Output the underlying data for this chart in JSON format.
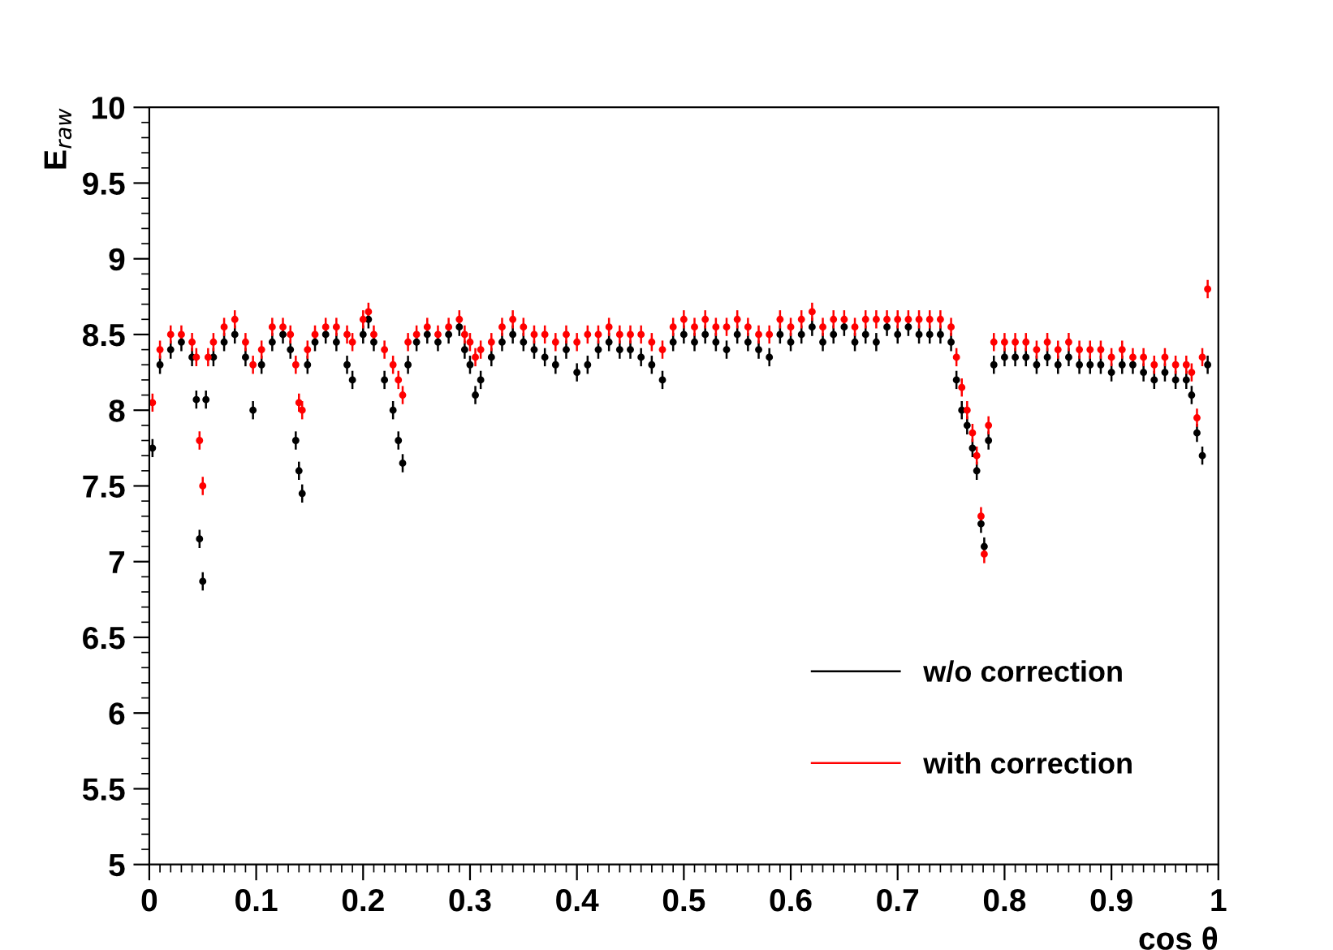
{
  "chart_data": {
    "type": "scatter",
    "xlabel": "cos θ",
    "ylabel": "E$_{raw}$",
    "xlim": [
      0,
      1
    ],
    "ylim": [
      5,
      10
    ],
    "xticks": [
      0,
      0.1,
      0.2,
      0.3,
      0.4,
      0.5,
      0.6,
      0.7,
      0.8,
      0.9,
      1
    ],
    "yticks": [
      5,
      5.5,
      6,
      6.5,
      7,
      7.5,
      8,
      8.5,
      9,
      9.5,
      10
    ],
    "grid": false,
    "legend": "bottom right",
    "marker": "circle",
    "series": [
      {
        "name": "w/o correction",
        "color": "#000000",
        "x": [
          0.003,
          0.01,
          0.02,
          0.03,
          0.04,
          0.044,
          0.047,
          0.05,
          0.053,
          0.06,
          0.07,
          0.08,
          0.09,
          0.097,
          0.105,
          0.115,
          0.125,
          0.132,
          0.137,
          0.14,
          0.143,
          0.148,
          0.155,
          0.165,
          0.175,
          0.185,
          0.19,
          0.2,
          0.205,
          0.21,
          0.22,
          0.228,
          0.233,
          0.237,
          0.242,
          0.25,
          0.26,
          0.27,
          0.28,
          0.29,
          0.295,
          0.3,
          0.305,
          0.31,
          0.32,
          0.33,
          0.34,
          0.35,
          0.36,
          0.37,
          0.38,
          0.39,
          0.4,
          0.41,
          0.42,
          0.43,
          0.44,
          0.45,
          0.46,
          0.47,
          0.48,
          0.49,
          0.5,
          0.51,
          0.52,
          0.53,
          0.54,
          0.55,
          0.56,
          0.57,
          0.58,
          0.59,
          0.6,
          0.61,
          0.62,
          0.63,
          0.64,
          0.65,
          0.66,
          0.67,
          0.68,
          0.69,
          0.7,
          0.71,
          0.72,
          0.73,
          0.74,
          0.75,
          0.755,
          0.76,
          0.765,
          0.77,
          0.774,
          0.778,
          0.781,
          0.785,
          0.79,
          0.8,
          0.81,
          0.82,
          0.83,
          0.84,
          0.85,
          0.86,
          0.87,
          0.88,
          0.89,
          0.9,
          0.91,
          0.92,
          0.93,
          0.94,
          0.95,
          0.96,
          0.97,
          0.975,
          0.98,
          0.985,
          0.99
        ],
        "values": [
          7.75,
          8.3,
          8.4,
          8.45,
          8.35,
          8.07,
          7.15,
          6.87,
          8.07,
          8.35,
          8.45,
          8.5,
          8.35,
          8.0,
          8.3,
          8.45,
          8.5,
          8.4,
          7.8,
          7.6,
          7.45,
          8.3,
          8.45,
          8.5,
          8.45,
          8.3,
          8.2,
          8.5,
          8.6,
          8.45,
          8.2,
          8.0,
          7.8,
          7.65,
          8.3,
          8.45,
          8.5,
          8.45,
          8.5,
          8.55,
          8.4,
          8.3,
          8.1,
          8.2,
          8.35,
          8.45,
          8.5,
          8.45,
          8.4,
          8.35,
          8.3,
          8.4,
          8.25,
          8.3,
          8.4,
          8.45,
          8.4,
          8.4,
          8.35,
          8.3,
          8.2,
          8.45,
          8.5,
          8.45,
          8.5,
          8.45,
          8.4,
          8.5,
          8.45,
          8.4,
          8.35,
          8.5,
          8.45,
          8.5,
          8.55,
          8.45,
          8.5,
          8.55,
          8.45,
          8.5,
          8.45,
          8.55,
          8.5,
          8.55,
          8.5,
          8.5,
          8.5,
          8.45,
          8.2,
          8.0,
          7.9,
          7.75,
          7.6,
          7.25,
          7.1,
          7.8,
          8.3,
          8.35,
          8.35,
          8.35,
          8.3,
          8.35,
          8.3,
          8.35,
          8.3,
          8.3,
          8.3,
          8.25,
          8.3,
          8.3,
          8.25,
          8.2,
          8.25,
          8.2,
          8.2,
          8.1,
          7.85,
          7.7,
          8.3
        ],
        "errors": [
          0.06,
          0.06,
          0.06,
          0.06,
          0.06,
          0.06,
          0.06,
          0.06,
          0.06,
          0.06,
          0.06,
          0.06,
          0.06,
          0.06,
          0.06,
          0.06,
          0.06,
          0.06,
          0.06,
          0.06,
          0.06,
          0.06,
          0.06,
          0.06,
          0.06,
          0.06,
          0.06,
          0.06,
          0.06,
          0.06,
          0.06,
          0.06,
          0.06,
          0.06,
          0.06,
          0.06,
          0.06,
          0.06,
          0.06,
          0.06,
          0.06,
          0.06,
          0.06,
          0.06,
          0.06,
          0.06,
          0.06,
          0.06,
          0.06,
          0.06,
          0.06,
          0.06,
          0.06,
          0.06,
          0.06,
          0.06,
          0.06,
          0.06,
          0.06,
          0.06,
          0.06,
          0.06,
          0.06,
          0.06,
          0.06,
          0.06,
          0.06,
          0.06,
          0.06,
          0.06,
          0.06,
          0.06,
          0.06,
          0.06,
          0.06,
          0.06,
          0.06,
          0.06,
          0.06,
          0.06,
          0.06,
          0.06,
          0.06,
          0.06,
          0.06,
          0.06,
          0.06,
          0.06,
          0.06,
          0.06,
          0.06,
          0.06,
          0.06,
          0.06,
          0.06,
          0.06,
          0.06,
          0.06,
          0.06,
          0.06,
          0.06,
          0.06,
          0.06,
          0.06,
          0.06,
          0.06,
          0.06,
          0.06,
          0.06,
          0.06,
          0.06,
          0.06,
          0.06,
          0.06,
          0.06,
          0.06,
          0.06,
          0.06,
          0.06
        ]
      },
      {
        "name": "with correction",
        "color": "#ff0000",
        "x": [
          0.003,
          0.01,
          0.02,
          0.03,
          0.04,
          0.044,
          0.047,
          0.05,
          0.055,
          0.06,
          0.07,
          0.08,
          0.09,
          0.097,
          0.105,
          0.115,
          0.125,
          0.132,
          0.137,
          0.14,
          0.143,
          0.148,
          0.155,
          0.165,
          0.175,
          0.185,
          0.19,
          0.2,
          0.205,
          0.21,
          0.22,
          0.228,
          0.233,
          0.237,
          0.242,
          0.25,
          0.26,
          0.27,
          0.28,
          0.29,
          0.295,
          0.3,
          0.305,
          0.31,
          0.32,
          0.33,
          0.34,
          0.35,
          0.36,
          0.37,
          0.38,
          0.39,
          0.4,
          0.41,
          0.42,
          0.43,
          0.44,
          0.45,
          0.46,
          0.47,
          0.48,
          0.49,
          0.5,
          0.51,
          0.52,
          0.53,
          0.54,
          0.55,
          0.56,
          0.57,
          0.58,
          0.59,
          0.6,
          0.61,
          0.62,
          0.63,
          0.64,
          0.65,
          0.66,
          0.67,
          0.68,
          0.69,
          0.7,
          0.71,
          0.72,
          0.73,
          0.74,
          0.75,
          0.755,
          0.76,
          0.765,
          0.77,
          0.774,
          0.778,
          0.781,
          0.785,
          0.79,
          0.8,
          0.81,
          0.82,
          0.83,
          0.84,
          0.85,
          0.86,
          0.87,
          0.88,
          0.89,
          0.9,
          0.91,
          0.92,
          0.93,
          0.94,
          0.95,
          0.96,
          0.97,
          0.975,
          0.98,
          0.985,
          0.99
        ],
        "values": [
          8.05,
          8.4,
          8.5,
          8.5,
          8.45,
          8.35,
          7.8,
          7.5,
          8.35,
          8.45,
          8.55,
          8.6,
          8.45,
          8.3,
          8.4,
          8.55,
          8.55,
          8.5,
          8.3,
          8.05,
          8.0,
          8.4,
          8.5,
          8.55,
          8.55,
          8.5,
          8.45,
          8.6,
          8.65,
          8.5,
          8.4,
          8.3,
          8.2,
          8.1,
          8.45,
          8.5,
          8.55,
          8.5,
          8.55,
          8.6,
          8.5,
          8.45,
          8.35,
          8.4,
          8.45,
          8.55,
          8.6,
          8.55,
          8.5,
          8.5,
          8.45,
          8.5,
          8.45,
          8.5,
          8.5,
          8.55,
          8.5,
          8.5,
          8.5,
          8.45,
          8.4,
          8.55,
          8.6,
          8.55,
          8.6,
          8.55,
          8.55,
          8.6,
          8.55,
          8.5,
          8.5,
          8.6,
          8.55,
          8.6,
          8.65,
          8.55,
          8.6,
          8.6,
          8.55,
          8.6,
          8.6,
          8.6,
          8.6,
          8.6,
          8.6,
          8.6,
          8.6,
          8.55,
          8.35,
          8.15,
          8.0,
          7.85,
          7.7,
          7.3,
          7.05,
          7.9,
          8.45,
          8.45,
          8.45,
          8.45,
          8.4,
          8.45,
          8.4,
          8.45,
          8.4,
          8.4,
          8.4,
          8.35,
          8.4,
          8.35,
          8.35,
          8.3,
          8.35,
          8.3,
          8.3,
          8.25,
          7.95,
          8.35,
          8.8
        ],
        "errors": [
          0.06,
          0.06,
          0.06,
          0.06,
          0.06,
          0.06,
          0.06,
          0.06,
          0.06,
          0.06,
          0.06,
          0.06,
          0.06,
          0.06,
          0.06,
          0.06,
          0.06,
          0.06,
          0.06,
          0.06,
          0.06,
          0.06,
          0.06,
          0.06,
          0.06,
          0.06,
          0.06,
          0.06,
          0.06,
          0.06,
          0.06,
          0.06,
          0.06,
          0.06,
          0.06,
          0.06,
          0.06,
          0.06,
          0.06,
          0.06,
          0.06,
          0.06,
          0.06,
          0.06,
          0.06,
          0.06,
          0.06,
          0.06,
          0.06,
          0.06,
          0.06,
          0.06,
          0.06,
          0.06,
          0.06,
          0.06,
          0.06,
          0.06,
          0.06,
          0.06,
          0.06,
          0.06,
          0.06,
          0.06,
          0.06,
          0.06,
          0.06,
          0.06,
          0.06,
          0.06,
          0.06,
          0.06,
          0.06,
          0.06,
          0.06,
          0.06,
          0.06,
          0.06,
          0.06,
          0.06,
          0.06,
          0.06,
          0.06,
          0.06,
          0.06,
          0.06,
          0.06,
          0.06,
          0.06,
          0.06,
          0.06,
          0.06,
          0.06,
          0.06,
          0.06,
          0.06,
          0.06,
          0.06,
          0.06,
          0.06,
          0.06,
          0.06,
          0.06,
          0.06,
          0.06,
          0.06,
          0.06,
          0.06,
          0.06,
          0.06,
          0.06,
          0.06,
          0.06,
          0.06,
          0.06,
          0.06,
          0.06,
          0.06,
          0.06
        ]
      }
    ]
  }
}
